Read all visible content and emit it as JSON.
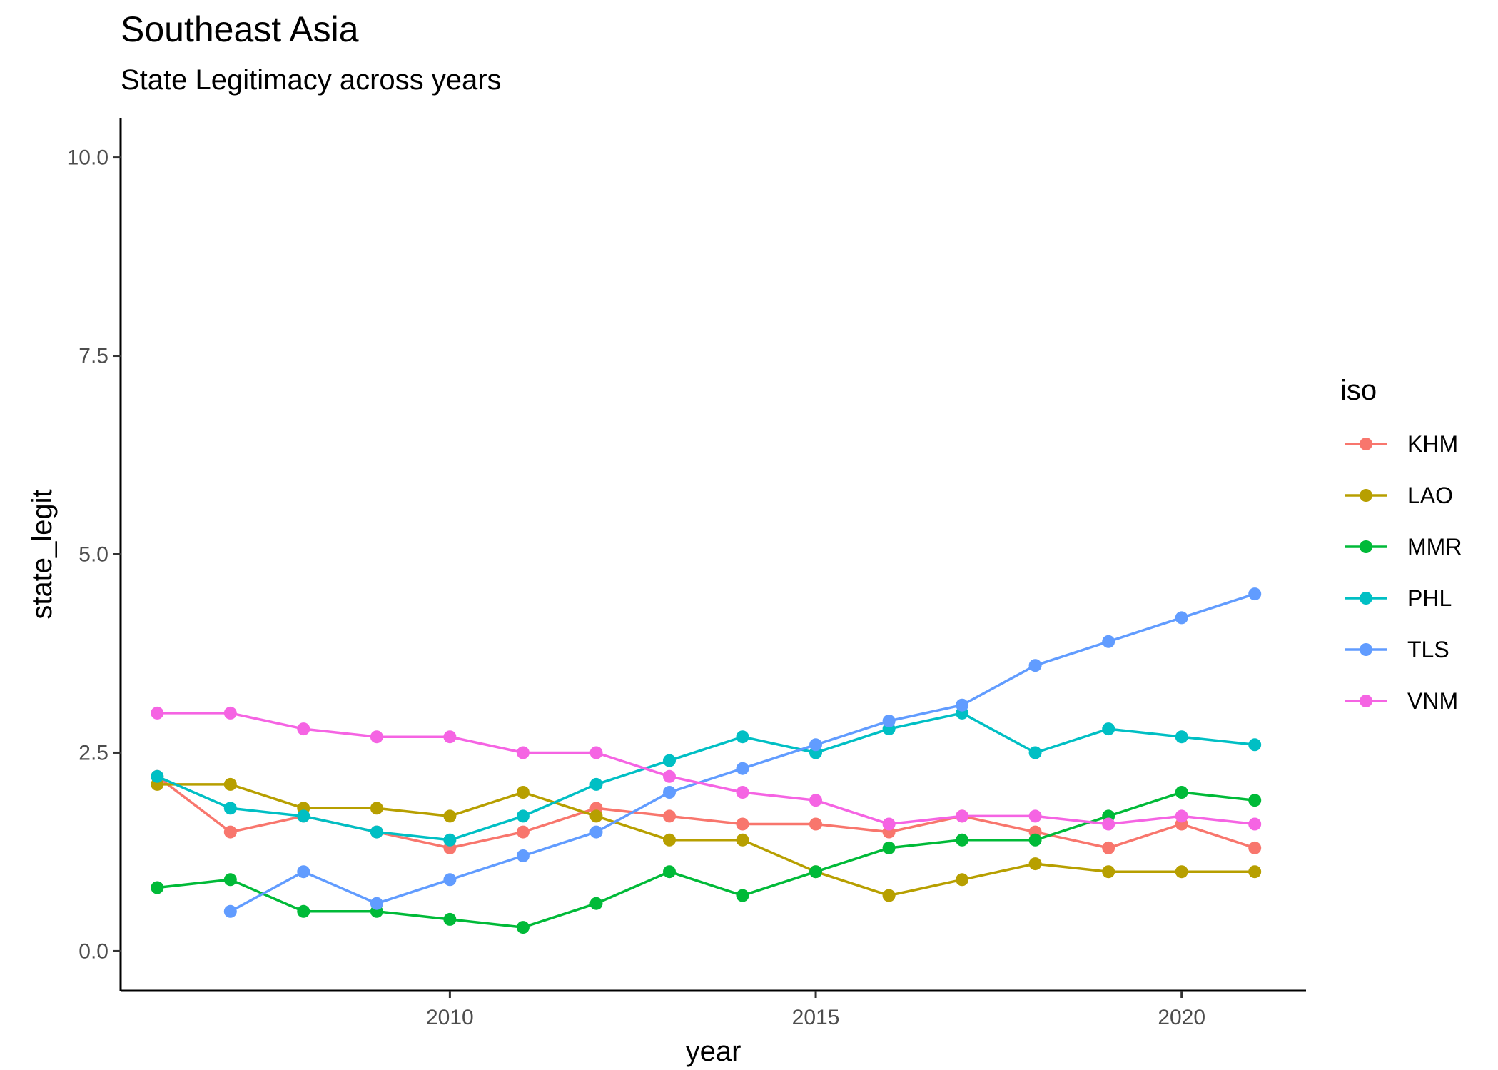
{
  "chart_data": {
    "type": "line",
    "title": "Southeast Asia",
    "subtitle": "State Legitimacy across years",
    "xlabel": "year",
    "ylabel": "state_legit",
    "xlim": [
      2005.5,
      2021.7
    ],
    "ylim": [
      -0.5,
      10.5
    ],
    "x_ticks": [
      2010,
      2015,
      2020
    ],
    "y_ticks": [
      0,
      2.5,
      5,
      7.5,
      10
    ],
    "x_tick_labels": [
      "2010",
      "2015",
      "2020"
    ],
    "y_tick_labels": [
      "0.0",
      "2.5",
      "5.0",
      "7.5",
      "10.0"
    ],
    "grid": false,
    "legend": {
      "title": "iso",
      "position": "right"
    },
    "series": [
      {
        "name": "KHM",
        "color": "#F8766D",
        "points": [
          [
            2006,
            2.2
          ],
          [
            2007,
            1.5
          ],
          [
            2008,
            1.7
          ],
          [
            2009,
            1.5
          ],
          [
            2010,
            1.3
          ],
          [
            2011,
            1.5
          ],
          [
            2012,
            1.8
          ],
          [
            2013,
            1.7
          ],
          [
            2014,
            1.6
          ],
          [
            2015,
            1.6
          ],
          [
            2016,
            1.5
          ],
          [
            2017,
            1.7
          ],
          [
            2018,
            1.5
          ],
          [
            2019,
            1.3
          ],
          [
            2020,
            1.6
          ],
          [
            2021,
            1.3
          ]
        ]
      },
      {
        "name": "LAO",
        "color": "#B79F00",
        "points": [
          [
            2006,
            2.1
          ],
          [
            2007,
            2.1
          ],
          [
            2008,
            1.8
          ],
          [
            2009,
            1.8
          ],
          [
            2010,
            1.7
          ],
          [
            2011,
            2.0
          ],
          [
            2012,
            1.7
          ],
          [
            2013,
            1.4
          ],
          [
            2014,
            1.4
          ],
          [
            2015,
            1.0
          ],
          [
            2016,
            0.7
          ],
          [
            2017,
            0.9
          ],
          [
            2018,
            1.1
          ],
          [
            2019,
            1.0
          ],
          [
            2020,
            1.0
          ],
          [
            2021,
            1.0
          ]
        ]
      },
      {
        "name": "MMR",
        "color": "#00BA38",
        "points": [
          [
            2006,
            0.8
          ],
          [
            2007,
            0.9
          ],
          [
            2008,
            0.5
          ],
          [
            2009,
            0.5
          ],
          [
            2010,
            0.4
          ],
          [
            2011,
            0.3
          ],
          [
            2012,
            0.6
          ],
          [
            2013,
            1.0
          ],
          [
            2014,
            0.7
          ],
          [
            2015,
            1.0
          ],
          [
            2016,
            1.3
          ],
          [
            2017,
            1.4
          ],
          [
            2018,
            1.4
          ],
          [
            2019,
            1.7
          ],
          [
            2020,
            2.0
          ],
          [
            2021,
            1.9
          ]
        ]
      },
      {
        "name": "PHL",
        "color": "#00BFC4",
        "points": [
          [
            2006,
            2.2
          ],
          [
            2007,
            1.8
          ],
          [
            2008,
            1.7
          ],
          [
            2009,
            1.5
          ],
          [
            2010,
            1.4
          ],
          [
            2011,
            1.7
          ],
          [
            2012,
            2.1
          ],
          [
            2013,
            2.4
          ],
          [
            2014,
            2.7
          ],
          [
            2015,
            2.5
          ],
          [
            2016,
            2.8
          ],
          [
            2017,
            3.0
          ],
          [
            2018,
            2.5
          ],
          [
            2019,
            2.8
          ],
          [
            2020,
            2.7
          ],
          [
            2021,
            2.6
          ]
        ]
      },
      {
        "name": "TLS",
        "color": "#619CFF",
        "points": [
          [
            2007,
            0.5
          ],
          [
            2008,
            1.0
          ],
          [
            2009,
            0.6
          ],
          [
            2010,
            0.9
          ],
          [
            2011,
            1.2
          ],
          [
            2012,
            1.5
          ],
          [
            2013,
            2.0
          ],
          [
            2014,
            2.3
          ],
          [
            2015,
            2.6
          ],
          [
            2016,
            2.9
          ],
          [
            2017,
            3.1
          ],
          [
            2018,
            3.6
          ],
          [
            2019,
            3.9
          ],
          [
            2020,
            4.2
          ],
          [
            2021,
            4.5
          ]
        ]
      },
      {
        "name": "VNM",
        "color": "#F564E3",
        "points": [
          [
            2006,
            3.0
          ],
          [
            2007,
            3.0
          ],
          [
            2008,
            2.8
          ],
          [
            2009,
            2.7
          ],
          [
            2010,
            2.7
          ],
          [
            2011,
            2.5
          ],
          [
            2012,
            2.5
          ],
          [
            2013,
            2.2
          ],
          [
            2014,
            2.0
          ],
          [
            2015,
            1.9
          ],
          [
            2016,
            1.6
          ],
          [
            2017,
            1.7
          ],
          [
            2018,
            1.7
          ],
          [
            2019,
            1.6
          ],
          [
            2020,
            1.7
          ],
          [
            2021,
            1.6
          ]
        ]
      }
    ]
  }
}
